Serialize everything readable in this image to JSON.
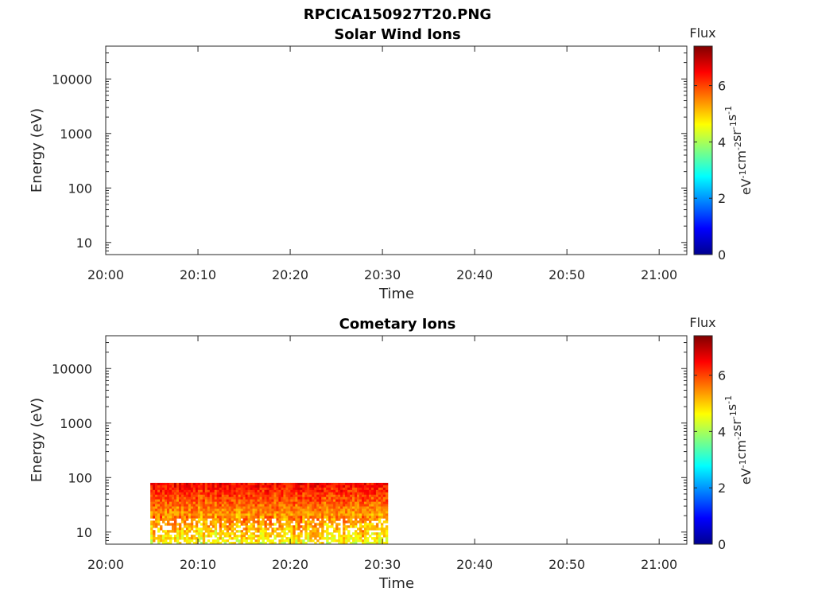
{
  "figure_title": "RPCICA150927T20.PNG",
  "colors": {
    "colormap": [
      "#00008f",
      "#0000ff",
      "#0080ff",
      "#00ffff",
      "#80ff80",
      "#ffff00",
      "#ff8000",
      "#ff0000",
      "#800000"
    ]
  },
  "chart_data": [
    {
      "type": "heatmap",
      "title": "Solar Wind Ions",
      "xlabel": "Time",
      "ylabel": "Energy (eV)",
      "x_ticks": [
        "20:00",
        "20:10",
        "20:20",
        "20:30",
        "20:40",
        "20:50",
        "21:00"
      ],
      "xlim": [
        "20:00",
        "21:03"
      ],
      "y_scale": "log",
      "y_ticks": [
        10,
        100,
        1000,
        10000
      ],
      "y_tick_labels": [
        "10",
        "100",
        "1000",
        "10000"
      ],
      "ylim": [
        6,
        40000
      ],
      "colorbar": {
        "label": "Flux",
        "units": "eV-1cm-2sr-1s-1",
        "range": [
          0,
          7.4
        ],
        "ticks": [
          "0",
          "2",
          "4",
          "6"
        ]
      },
      "data_region": null
    },
    {
      "type": "heatmap",
      "title": "Cometary Ions",
      "xlabel": "Time",
      "ylabel": "Energy (eV)",
      "x_ticks": [
        "20:00",
        "20:10",
        "20:20",
        "20:30",
        "20:40",
        "20:50",
        "21:00"
      ],
      "xlim": [
        "20:00",
        "21:03"
      ],
      "y_scale": "log",
      "y_ticks": [
        10,
        100,
        1000,
        10000
      ],
      "y_tick_labels": [
        "10",
        "100",
        "1000",
        "10000"
      ],
      "ylim": [
        6,
        40000
      ],
      "colorbar": {
        "label": "Flux",
        "units": "eV-1cm-2sr-1s-1",
        "range": [
          0,
          7.4
        ],
        "ticks": [
          "0",
          "2",
          "4",
          "6"
        ]
      },
      "data_region": {
        "t_start": "20:04:50",
        "t_end": "20:30:35",
        "e_min": 6,
        "e_max": 80,
        "flux_peak": 6.5,
        "flux_low": 4.0
      }
    }
  ]
}
